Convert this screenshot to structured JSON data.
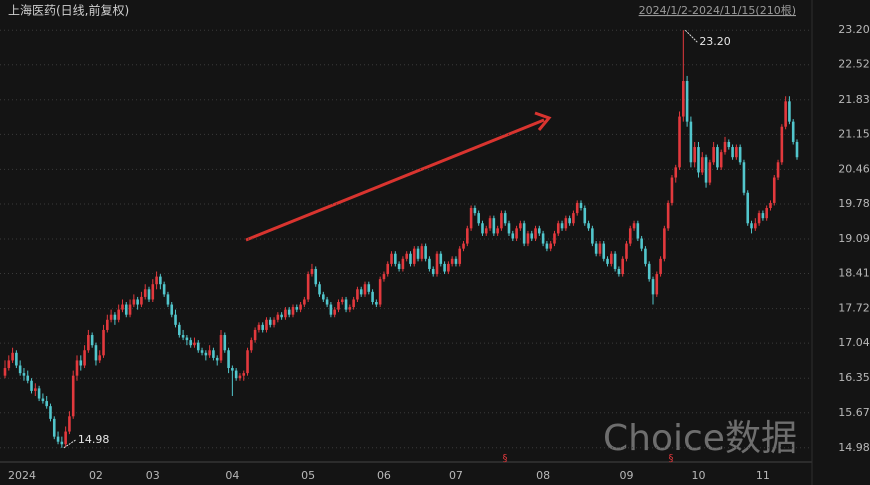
{
  "chart_data": {
    "type": "candlestick",
    "title": "上海医药(日线,前复权)",
    "range_label": "2024/1/2-2024/11/15(210根)",
    "watermark": "Choice数据",
    "event_markers": [
      "§",
      "§"
    ],
    "up_color": "#e2393d",
    "down_color": "#52c6cc",
    "grid": true,
    "ylim": [
      14.74,
      23.44
    ],
    "yticks": [
      14.98,
      15.67,
      16.35,
      17.04,
      17.72,
      18.41,
      19.09,
      19.78,
      20.46,
      21.15,
      21.83,
      22.52,
      {
        "value": 23.2,
        "label": "23.20"
      }
    ],
    "annotations": [
      {
        "text": "23.20",
        "value": 23.2
      },
      {
        "text": "14.98",
        "value": 14.98
      }
    ],
    "categories": [
      "2024",
      null,
      null,
      null,
      null,
      null,
      null,
      null,
      null,
      null,
      null,
      null,
      null,
      null,
      null,
      null,
      null,
      null,
      null,
      null,
      null,
      null,
      null,
      null,
      "02",
      null,
      null,
      null,
      null,
      null,
      null,
      null,
      null,
      null,
      null,
      null,
      null,
      null,
      null,
      "03",
      null,
      null,
      null,
      null,
      null,
      null,
      null,
      null,
      null,
      null,
      null,
      null,
      null,
      null,
      null,
      null,
      null,
      null,
      null,
      null,
      "04",
      null,
      null,
      null,
      null,
      null,
      null,
      null,
      null,
      null,
      null,
      null,
      null,
      null,
      null,
      null,
      null,
      null,
      null,
      null,
      "05",
      null,
      null,
      null,
      null,
      null,
      null,
      null,
      null,
      null,
      null,
      null,
      null,
      null,
      null,
      null,
      null,
      null,
      null,
      null,
      "06",
      null,
      null,
      null,
      null,
      null,
      null,
      null,
      null,
      null,
      null,
      null,
      null,
      null,
      null,
      null,
      null,
      null,
      null,
      "07",
      null,
      null,
      null,
      null,
      null,
      null,
      null,
      null,
      null,
      null,
      null,
      null,
      null,
      null,
      null,
      null,
      null,
      null,
      null,
      null,
      null,
      null,
      "08",
      null,
      null,
      null,
      null,
      null,
      null,
      null,
      null,
      null,
      null,
      null,
      null,
      null,
      null,
      null,
      null,
      null,
      null,
      null,
      null,
      null,
      "09",
      null,
      null,
      null,
      null,
      null,
      null,
      null,
      null,
      null,
      null,
      null,
      null,
      null,
      null,
      null,
      null,
      null,
      null,
      "10",
      null,
      null,
      null,
      null,
      null,
      null,
      null,
      null,
      null,
      null,
      null,
      null,
      null,
      null,
      null,
      null,
      "11",
      null,
      null,
      null,
      null,
      null,
      null,
      null,
      null,
      null
    ],
    "ohlc": [
      [
        16.4,
        16.7,
        16.35,
        16.55
      ],
      [
        16.55,
        16.8,
        16.5,
        16.7
      ],
      [
        16.7,
        16.95,
        16.65,
        16.85
      ],
      [
        16.85,
        16.9,
        16.55,
        16.6
      ],
      [
        16.6,
        16.7,
        16.4,
        16.45
      ],
      [
        16.45,
        16.55,
        16.3,
        16.4
      ],
      [
        16.4,
        16.5,
        16.25,
        16.3
      ],
      [
        16.3,
        16.35,
        16.05,
        16.1
      ],
      [
        16.1,
        16.25,
        16.0,
        16.15
      ],
      [
        16.15,
        16.2,
        15.9,
        15.95
      ],
      [
        15.95,
        16.05,
        15.85,
        15.9
      ],
      [
        15.9,
        16.0,
        15.75,
        15.8
      ],
      [
        15.8,
        15.85,
        15.5,
        15.55
      ],
      [
        15.55,
        15.6,
        15.15,
        15.2
      ],
      [
        15.2,
        15.3,
        15.05,
        15.1
      ],
      [
        15.1,
        15.2,
        14.98,
        15.05
      ],
      [
        15.05,
        15.4,
        15.0,
        15.3
      ],
      [
        15.3,
        15.7,
        15.25,
        15.6
      ],
      [
        15.6,
        16.5,
        15.55,
        16.4
      ],
      [
        16.4,
        16.8,
        16.3,
        16.7
      ],
      [
        16.7,
        16.8,
        16.5,
        16.6
      ],
      [
        16.6,
        17.0,
        16.55,
        16.9
      ],
      [
        16.9,
        17.3,
        16.85,
        17.2
      ],
      [
        17.2,
        17.25,
        16.95,
        17.0
      ],
      [
        17.0,
        17.05,
        16.6,
        16.7
      ],
      [
        16.7,
        16.9,
        16.65,
        16.8
      ],
      [
        16.8,
        17.4,
        16.75,
        17.3
      ],
      [
        17.3,
        17.6,
        17.25,
        17.5
      ],
      [
        17.5,
        17.7,
        17.45,
        17.6
      ],
      [
        17.6,
        17.65,
        17.4,
        17.5
      ],
      [
        17.5,
        17.8,
        17.45,
        17.7
      ],
      [
        17.7,
        17.9,
        17.65,
        17.8
      ],
      [
        17.8,
        17.85,
        17.55,
        17.6
      ],
      [
        17.6,
        17.9,
        17.55,
        17.8
      ],
      [
        17.8,
        18.0,
        17.75,
        17.9
      ],
      [
        17.9,
        17.95,
        17.7,
        17.8
      ],
      [
        17.8,
        18.05,
        17.75,
        17.95
      ],
      [
        17.95,
        18.2,
        17.9,
        18.1
      ],
      [
        18.1,
        18.15,
        17.85,
        17.9
      ],
      [
        17.9,
        18.3,
        17.85,
        18.2
      ],
      [
        18.2,
        18.45,
        18.1,
        18.35
      ],
      [
        18.35,
        18.4,
        18.1,
        18.2
      ],
      [
        18.2,
        18.25,
        17.95,
        18.0
      ],
      [
        18.0,
        18.05,
        17.75,
        17.8
      ],
      [
        17.8,
        17.85,
        17.55,
        17.6
      ],
      [
        17.6,
        17.7,
        17.35,
        17.4
      ],
      [
        17.4,
        17.45,
        17.15,
        17.2
      ],
      [
        17.2,
        17.3,
        17.1,
        17.15
      ],
      [
        17.15,
        17.2,
        17.0,
        17.1
      ],
      [
        17.1,
        17.15,
        16.95,
        17.0
      ],
      [
        17.0,
        17.15,
        16.95,
        17.05
      ],
      [
        17.05,
        17.1,
        16.85,
        16.9
      ],
      [
        16.9,
        16.95,
        16.8,
        16.85
      ],
      [
        16.85,
        16.9,
        16.7,
        16.8
      ],
      [
        16.8,
        17.0,
        16.75,
        16.9
      ],
      [
        16.9,
        16.95,
        16.7,
        16.75
      ],
      [
        16.75,
        16.8,
        16.6,
        16.7
      ],
      [
        16.7,
        17.3,
        16.65,
        17.2
      ],
      [
        17.2,
        17.25,
        16.85,
        16.9
      ],
      [
        16.9,
        16.95,
        16.45,
        16.55
      ],
      [
        16.55,
        16.6,
        16.0,
        16.5
      ],
      [
        16.5,
        16.55,
        16.3,
        16.35
      ],
      [
        16.35,
        16.45,
        16.3,
        16.4
      ],
      [
        16.4,
        16.5,
        16.3,
        16.45
      ],
      [
        16.45,
        16.95,
        16.4,
        16.9
      ],
      [
        16.9,
        17.15,
        16.85,
        17.1
      ],
      [
        17.1,
        17.35,
        17.05,
        17.3
      ],
      [
        17.3,
        17.45,
        17.25,
        17.4
      ],
      [
        17.4,
        17.45,
        17.25,
        17.3
      ],
      [
        17.3,
        17.55,
        17.25,
        17.5
      ],
      [
        17.5,
        17.55,
        17.35,
        17.4
      ],
      [
        17.4,
        17.55,
        17.35,
        17.5
      ],
      [
        17.5,
        17.65,
        17.45,
        17.6
      ],
      [
        17.6,
        17.65,
        17.5,
        17.55
      ],
      [
        17.55,
        17.75,
        17.5,
        17.7
      ],
      [
        17.7,
        17.75,
        17.55,
        17.6
      ],
      [
        17.6,
        17.8,
        17.55,
        17.75
      ],
      [
        17.75,
        17.8,
        17.65,
        17.7
      ],
      [
        17.7,
        17.85,
        17.65,
        17.8
      ],
      [
        17.8,
        17.95,
        17.75,
        17.9
      ],
      [
        17.9,
        18.45,
        17.85,
        18.4
      ],
      [
        18.4,
        18.6,
        18.35,
        18.5
      ],
      [
        18.5,
        18.55,
        18.15,
        18.2
      ],
      [
        18.2,
        18.25,
        17.95,
        18.0
      ],
      [
        18.0,
        18.05,
        17.85,
        17.9
      ],
      [
        17.9,
        17.95,
        17.75,
        17.8
      ],
      [
        17.8,
        17.85,
        17.55,
        17.6
      ],
      [
        17.6,
        17.75,
        17.55,
        17.7
      ],
      [
        17.7,
        17.9,
        17.65,
        17.85
      ],
      [
        17.85,
        17.95,
        17.8,
        17.9
      ],
      [
        17.9,
        17.95,
        17.65,
        17.7
      ],
      [
        17.7,
        17.8,
        17.65,
        17.75
      ],
      [
        17.75,
        17.95,
        17.7,
        17.9
      ],
      [
        17.9,
        18.15,
        17.85,
        18.1
      ],
      [
        18.1,
        18.15,
        17.95,
        18.0
      ],
      [
        18.0,
        18.25,
        17.95,
        18.2
      ],
      [
        18.2,
        18.25,
        18.0,
        18.05
      ],
      [
        18.05,
        18.1,
        17.8,
        17.85
      ],
      [
        17.85,
        17.9,
        17.75,
        17.8
      ],
      [
        17.8,
        18.35,
        17.75,
        18.3
      ],
      [
        18.3,
        18.45,
        18.25,
        18.4
      ],
      [
        18.4,
        18.65,
        18.35,
        18.6
      ],
      [
        18.6,
        18.85,
        18.55,
        18.8
      ],
      [
        18.8,
        18.85,
        18.55,
        18.6
      ],
      [
        18.6,
        18.65,
        18.45,
        18.5
      ],
      [
        18.5,
        18.75,
        18.45,
        18.7
      ],
      [
        18.7,
        18.85,
        18.65,
        18.8
      ],
      [
        18.8,
        18.85,
        18.55,
        18.6
      ],
      [
        18.6,
        18.95,
        18.55,
        18.9
      ],
      [
        18.9,
        18.95,
        18.65,
        18.7
      ],
      [
        18.7,
        19.0,
        18.65,
        18.95
      ],
      [
        18.95,
        19.0,
        18.65,
        18.7
      ],
      [
        18.7,
        18.75,
        18.45,
        18.5
      ],
      [
        18.5,
        18.55,
        18.35,
        18.4
      ],
      [
        18.4,
        18.85,
        18.35,
        18.8
      ],
      [
        18.8,
        18.85,
        18.55,
        18.6
      ],
      [
        18.6,
        18.65,
        18.4,
        18.45
      ],
      [
        18.45,
        18.65,
        18.4,
        18.6
      ],
      [
        18.6,
        18.75,
        18.55,
        18.7
      ],
      [
        18.7,
        18.75,
        18.55,
        18.6
      ],
      [
        18.6,
        18.95,
        18.55,
        18.9
      ],
      [
        18.9,
        19.05,
        18.85,
        19.0
      ],
      [
        19.0,
        19.35,
        18.95,
        19.3
      ],
      [
        19.3,
        19.75,
        19.25,
        19.7
      ],
      [
        19.7,
        19.75,
        19.55,
        19.6
      ],
      [
        19.6,
        19.65,
        19.35,
        19.4
      ],
      [
        19.4,
        19.45,
        19.15,
        19.2
      ],
      [
        19.2,
        19.35,
        19.15,
        19.3
      ],
      [
        19.3,
        19.55,
        19.25,
        19.5
      ],
      [
        19.5,
        19.55,
        19.15,
        19.2
      ],
      [
        19.2,
        19.35,
        19.15,
        19.3
      ],
      [
        19.3,
        19.65,
        19.25,
        19.6
      ],
      [
        19.6,
        19.65,
        19.35,
        19.4
      ],
      [
        19.4,
        19.45,
        19.15,
        19.2
      ],
      [
        19.2,
        19.25,
        19.05,
        19.1
      ],
      [
        19.1,
        19.35,
        19.05,
        19.3
      ],
      [
        19.3,
        19.45,
        19.25,
        19.4
      ],
      [
        19.4,
        19.45,
        18.95,
        19.0
      ],
      [
        19.0,
        19.25,
        18.95,
        19.2
      ],
      [
        19.2,
        19.25,
        19.05,
        19.1
      ],
      [
        19.1,
        19.35,
        19.05,
        19.3
      ],
      [
        19.3,
        19.35,
        19.15,
        19.2
      ],
      [
        19.2,
        19.25,
        18.95,
        19.0
      ],
      [
        19.0,
        19.05,
        18.85,
        18.9
      ],
      [
        18.9,
        19.05,
        18.85,
        19.0
      ],
      [
        19.0,
        19.25,
        18.95,
        19.2
      ],
      [
        19.2,
        19.45,
        19.15,
        19.4
      ],
      [
        19.4,
        19.45,
        19.25,
        19.3
      ],
      [
        19.3,
        19.55,
        19.25,
        19.5
      ],
      [
        19.5,
        19.55,
        19.35,
        19.4
      ],
      [
        19.4,
        19.65,
        19.35,
        19.6
      ],
      [
        19.6,
        19.85,
        19.55,
        19.8
      ],
      [
        19.8,
        19.85,
        19.65,
        19.7
      ],
      [
        19.7,
        19.75,
        19.35,
        19.4
      ],
      [
        19.4,
        19.45,
        19.25,
        19.3
      ],
      [
        19.3,
        19.35,
        18.95,
        19.0
      ],
      [
        19.0,
        19.05,
        18.75,
        18.8
      ],
      [
        18.8,
        19.05,
        18.75,
        19.0
      ],
      [
        19.0,
        19.05,
        18.65,
        18.7
      ],
      [
        18.7,
        18.75,
        18.55,
        18.6
      ],
      [
        18.6,
        18.85,
        18.55,
        18.8
      ],
      [
        18.8,
        18.85,
        18.45,
        18.5
      ],
      [
        18.5,
        18.55,
        18.35,
        18.4
      ],
      [
        18.4,
        18.75,
        18.35,
        18.7
      ],
      [
        18.7,
        19.05,
        18.65,
        19.0
      ],
      [
        19.0,
        19.35,
        18.95,
        19.3
      ],
      [
        19.3,
        19.45,
        19.25,
        19.4
      ],
      [
        19.4,
        19.45,
        19.05,
        19.1
      ],
      [
        19.1,
        19.15,
        18.85,
        18.9
      ],
      [
        18.9,
        18.95,
        18.55,
        18.6
      ],
      [
        18.6,
        18.65,
        18.25,
        18.3
      ],
      [
        18.3,
        18.35,
        17.8,
        18.0
      ],
      [
        18.0,
        18.45,
        17.95,
        18.4
      ],
      [
        18.4,
        18.75,
        18.35,
        18.7
      ],
      [
        18.7,
        19.35,
        18.65,
        19.3
      ],
      [
        19.3,
        19.85,
        19.25,
        19.8
      ],
      [
        19.8,
        20.35,
        19.75,
        20.3
      ],
      [
        20.3,
        20.55,
        20.2,
        20.5
      ],
      [
        20.5,
        21.6,
        20.45,
        21.5
      ],
      [
        21.5,
        23.2,
        21.4,
        22.2
      ],
      [
        22.2,
        22.3,
        21.3,
        21.4
      ],
      [
        21.4,
        21.5,
        20.5,
        20.6
      ],
      [
        20.6,
        21.0,
        20.5,
        20.9
      ],
      [
        20.9,
        21.0,
        20.3,
        20.4
      ],
      [
        20.4,
        20.8,
        20.35,
        20.7
      ],
      [
        20.7,
        20.75,
        20.1,
        20.2
      ],
      [
        20.2,
        20.65,
        20.15,
        20.6
      ],
      [
        20.6,
        21.0,
        20.55,
        20.9
      ],
      [
        20.9,
        20.95,
        20.45,
        20.5
      ],
      [
        20.5,
        20.85,
        20.45,
        20.8
      ],
      [
        20.8,
        21.1,
        20.75,
        21.0
      ],
      [
        21.0,
        21.05,
        20.85,
        20.9
      ],
      [
        20.9,
        20.95,
        20.65,
        20.7
      ],
      [
        20.7,
        20.95,
        20.65,
        20.9
      ],
      [
        20.9,
        20.95,
        20.55,
        20.6
      ],
      [
        20.6,
        20.65,
        19.95,
        20.0
      ],
      [
        20.0,
        20.05,
        19.35,
        19.4
      ],
      [
        19.4,
        19.45,
        19.2,
        19.3
      ],
      [
        19.3,
        19.5,
        19.25,
        19.4
      ],
      [
        19.4,
        19.65,
        19.35,
        19.6
      ],
      [
        19.6,
        19.65,
        19.45,
        19.5
      ],
      [
        19.5,
        19.75,
        19.45,
        19.7
      ],
      [
        19.7,
        19.85,
        19.65,
        19.8
      ],
      [
        19.8,
        20.35,
        19.75,
        20.3
      ],
      [
        20.3,
        20.65,
        20.25,
        20.6
      ],
      [
        20.6,
        21.35,
        20.55,
        21.3
      ],
      [
        21.3,
        21.9,
        21.25,
        21.8
      ],
      [
        21.8,
        21.9,
        21.35,
        21.4
      ],
      [
        21.4,
        21.45,
        20.95,
        21.0
      ],
      [
        21.0,
        21.05,
        20.65,
        20.7
      ]
    ]
  }
}
